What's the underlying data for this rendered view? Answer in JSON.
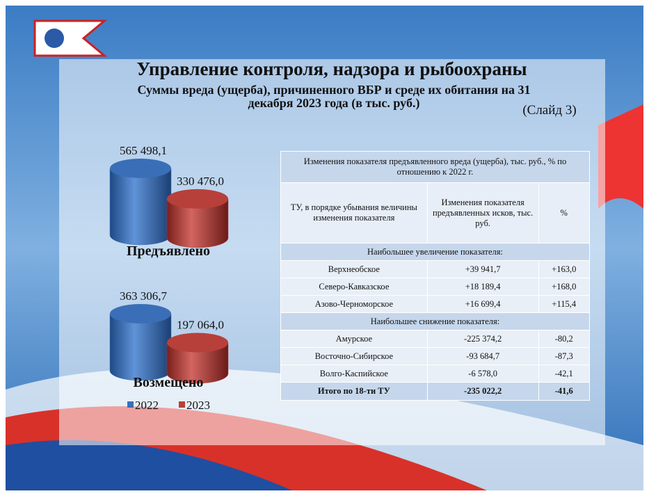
{
  "header": {
    "title": "Управление контроля, надзора и рыбоохраны",
    "subtitle": "Суммы вреда (ущерба), причиненного ВБР и среде их обитания на 31 декабря 2023 года (в тыс. руб.)",
    "slide": "(Слайд 3)"
  },
  "chart_data": [
    {
      "type": "bar",
      "categories": [
        "Предъявлено"
      ],
      "series": [
        {
          "color": "#3a6fb8",
          "values": [
            565498.1
          ],
          "value_labels": [
            "565 498,1"
          ]
        },
        {
          "color": "#b8403a",
          "values": [
            330476.0
          ],
          "value_labels": [
            "330 476,0"
          ]
        }
      ]
    },
    {
      "type": "bar",
      "categories": [
        "Возмещено"
      ],
      "series": [
        {
          "name": "2022",
          "color": "#3a6fb8",
          "values": [
            363306.7
          ],
          "value_labels": [
            "363 306,7"
          ]
        },
        {
          "name": "2023",
          "color": "#b8403a",
          "values": [
            197064.0
          ],
          "value_labels": [
            "197 064,0"
          ]
        }
      ]
    }
  ],
  "table": {
    "caption": "Изменения показателя предъявленного вреда (ущерба), тыс. руб., % по отношению к 2022 г.",
    "columns": [
      "ТУ, в порядке убывания величины изменения показателя",
      "Изменения показателя предъявленных исков, тыс. руб.",
      "%"
    ],
    "sections": [
      {
        "title": "Наибольшее увеличение показателя:",
        "rows": [
          [
            "Верхнеобское",
            "+39 941,7",
            "+163,0"
          ],
          [
            "Северо-Кавказское",
            "+18 189,4",
            "+168,0"
          ],
          [
            "Азово-Черноморское",
            "+16 699,4",
            "+115,4"
          ]
        ]
      },
      {
        "title": "Наибольшее снижение показателя:",
        "rows": [
          [
            "Амурское",
            "-225 374,2",
            "-80,2"
          ],
          [
            "Восточно-Сибирское",
            "-93 684,7",
            "-87,3"
          ],
          [
            "Волго-Каспийское",
            "-6 578,0",
            "-42,1"
          ]
        ]
      }
    ],
    "total": [
      "Итого по 18-ти ТУ",
      "-235 022,2",
      "-41,6"
    ]
  }
}
